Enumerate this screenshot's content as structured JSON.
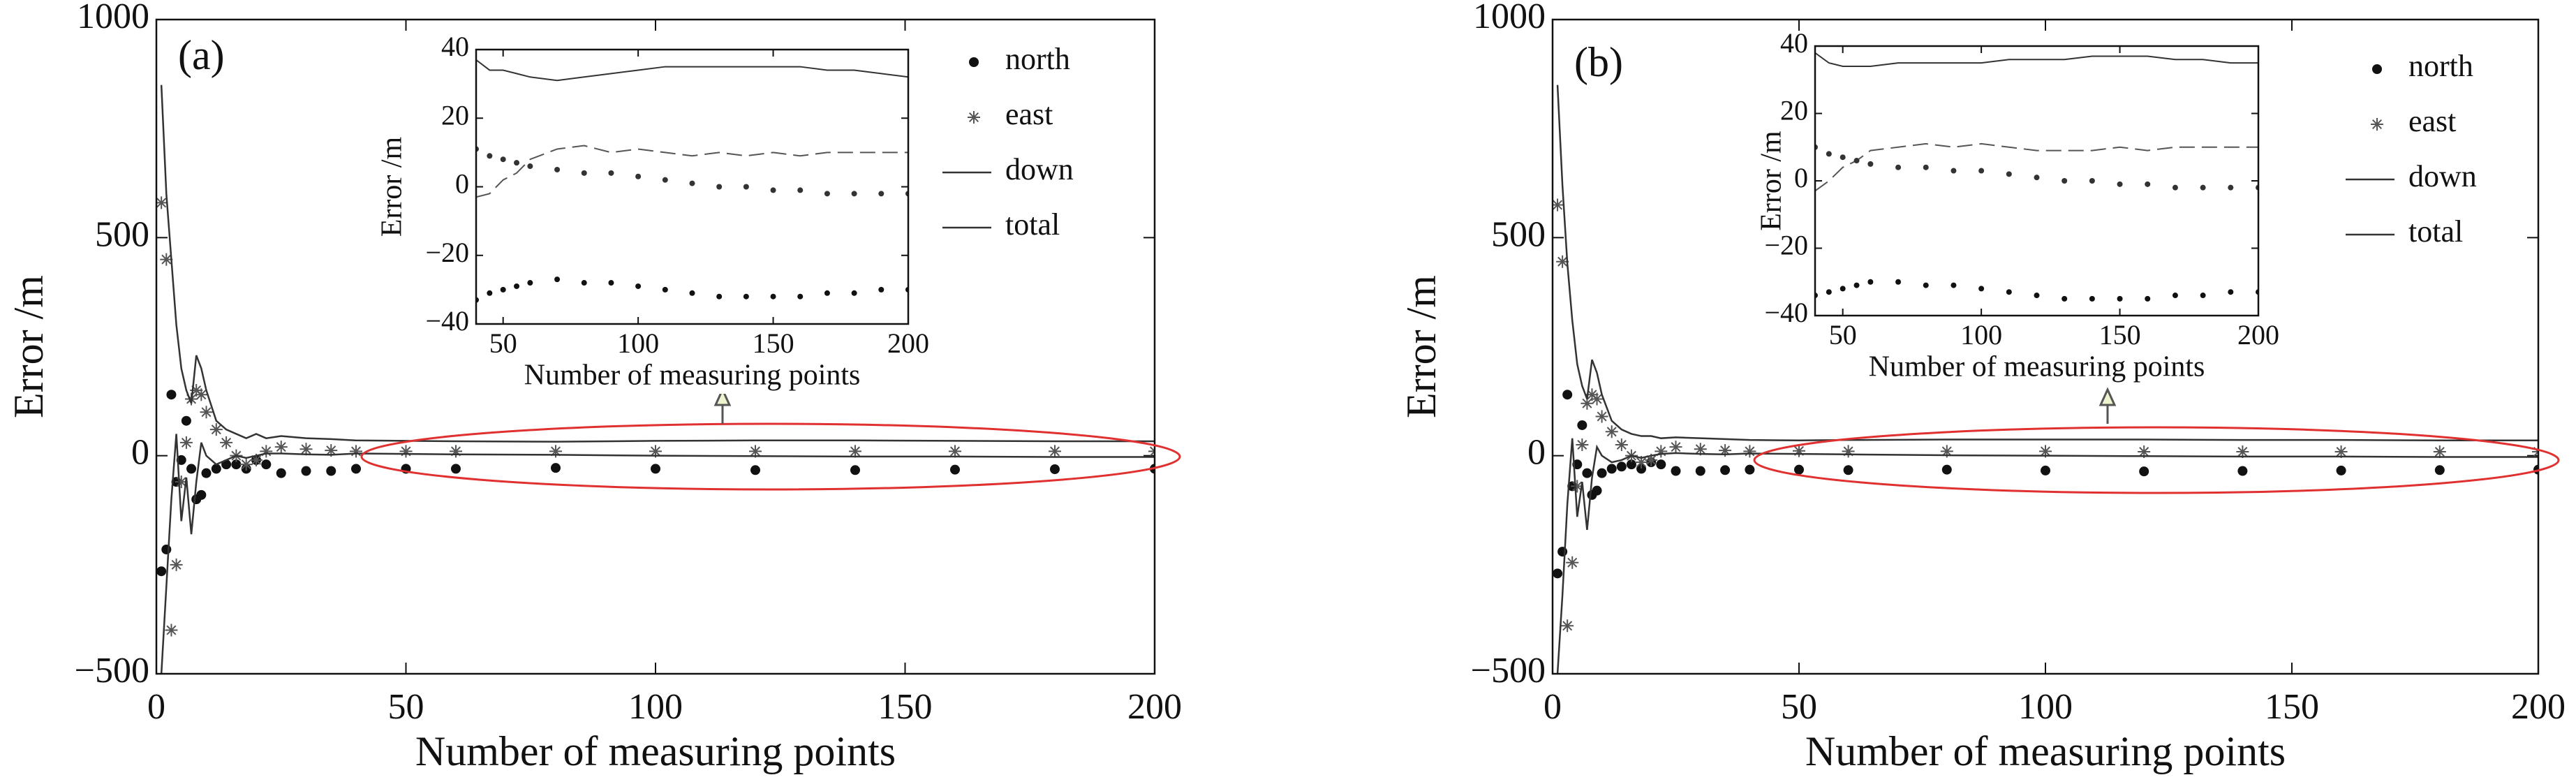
{
  "chart_data": [
    {
      "type": "line",
      "annotation": "(a)",
      "xlabel": "Number of measuring points",
      "ylabel": "Error /m",
      "x": [
        1,
        2,
        3,
        4,
        5,
        6,
        7,
        8,
        9,
        10,
        12,
        14,
        16,
        18,
        20,
        22,
        25,
        30,
        35,
        40,
        50,
        60,
        80,
        100,
        120,
        140,
        160,
        180,
        200
      ],
      "xlim": [
        0,
        200
      ],
      "xticks": [
        0,
        50,
        100,
        150,
        200
      ],
      "ylim": [
        -500,
        1000
      ],
      "yticks": [
        {
          "value": -500,
          "label": "−500"
        },
        0,
        500,
        1000
      ],
      "series": [
        {
          "name": "north",
          "color": "#111111",
          "marker": "dot",
          "values": [
            -265,
            -215,
            140,
            -60,
            -10,
            80,
            -30,
            -100,
            -90,
            -40,
            -30,
            -20,
            -20,
            -30,
            -10,
            -20,
            -40,
            -35,
            -35,
            -30,
            -30,
            -30,
            -28,
            -30,
            -33,
            -33,
            -32,
            -31,
            -30
          ]
        },
        {
          "name": "east",
          "color": "#555555",
          "marker": "star",
          "values": [
            580,
            450,
            -400,
            -250,
            -60,
            30,
            130,
            150,
            140,
            100,
            60,
            30,
            0,
            -20,
            -10,
            10,
            20,
            15,
            12,
            10,
            10,
            10,
            10,
            10,
            10,
            10,
            10,
            10,
            10
          ]
        },
        {
          "name": "down",
          "color": "#333333",
          "marker": "line",
          "values": [
            -500,
            -300,
            -100,
            50,
            -150,
            -50,
            -180,
            -60,
            30,
            0,
            -20,
            -10,
            0,
            -5,
            0,
            5,
            5,
            3,
            2,
            5,
            4,
            3,
            2,
            0,
            -1,
            -2,
            -2,
            -3,
            -3
          ]
        },
        {
          "name": "total",
          "color": "#333333",
          "marker": "line",
          "values": [
            850,
            600,
            450,
            300,
            200,
            150,
            120,
            230,
            200,
            150,
            80,
            60,
            50,
            40,
            50,
            40,
            45,
            40,
            38,
            35,
            34,
            33,
            32,
            34,
            35,
            35,
            34,
            33,
            33
          ]
        }
      ]
    },
    {
      "type": "line",
      "xlabel": "Number of measuring points",
      "ylabel": "Error /m",
      "x": [
        40,
        45,
        50,
        55,
        60,
        70,
        80,
        90,
        100,
        110,
        120,
        130,
        140,
        150,
        160,
        170,
        180,
        190,
        200
      ],
      "xlim": [
        40,
        200
      ],
      "xticks": [
        50,
        100,
        150,
        200
      ],
      "ylim": [
        -40,
        40
      ],
      "yticks": [
        {
          "value": -40,
          "label": "−40"
        },
        {
          "value": -20,
          "label": "−20"
        },
        0,
        20,
        40
      ],
      "series": [
        {
          "color": "#111111",
          "marker": "dot",
          "values": [
            -33,
            -31,
            -30,
            -29,
            -28,
            -27,
            -28,
            -28,
            -29,
            -30,
            -31,
            -32,
            -32,
            -32,
            -32,
            -31,
            -31,
            -30,
            -30
          ]
        },
        {
          "color": "#555555",
          "marker": "dash",
          "values": [
            -3,
            -2,
            2,
            4,
            8,
            11,
            12,
            10,
            11,
            10,
            9,
            10,
            9,
            10,
            9,
            10,
            10,
            10,
            10
          ]
        },
        {
          "color": "#333333",
          "marker": "dot",
          "values": [
            11,
            9,
            8,
            7,
            6,
            5,
            4,
            4,
            3,
            2,
            1,
            0,
            0,
            -1,
            -1,
            -2,
            -2,
            -2,
            -2
          ]
        },
        {
          "color": "#333333",
          "marker": "line",
          "values": [
            37,
            34,
            34,
            33,
            32,
            31,
            32,
            33,
            34,
            35,
            35,
            35,
            35,
            35,
            35,
            34,
            34,
            33,
            32
          ]
        }
      ]
    },
    {
      "type": "line",
      "annotation": "(b)",
      "xlabel": "Number of measuring points",
      "ylabel": "Error /m",
      "x": [
        1,
        2,
        3,
        4,
        5,
        6,
        7,
        8,
        9,
        10,
        12,
        14,
        16,
        18,
        20,
        22,
        25,
        30,
        35,
        40,
        50,
        60,
        80,
        100,
        120,
        140,
        160,
        180,
        200
      ],
      "xlim": [
        0,
        200
      ],
      "xticks": [
        0,
        50,
        100,
        150,
        200
      ],
      "ylim": [
        -500,
        1000
      ],
      "yticks": [
        {
          "value": -500,
          "label": "−500"
        },
        0,
        500,
        1000
      ],
      "series": [
        {
          "name": "north",
          "color": "#111111",
          "marker": "dot",
          "values": [
            -270,
            -220,
            140,
            -70,
            -20,
            70,
            -40,
            -90,
            -80,
            -40,
            -30,
            -25,
            -20,
            -30,
            -15,
            -20,
            -35,
            -35,
            -33,
            -32,
            -32,
            -33,
            -32,
            -34,
            -36,
            -35,
            -34,
            -33,
            -32
          ]
        },
        {
          "name": "east",
          "color": "#555555",
          "marker": "star",
          "values": [
            575,
            445,
            -390,
            -245,
            -70,
            25,
            120,
            140,
            130,
            90,
            55,
            25,
            0,
            -15,
            -10,
            10,
            20,
            15,
            12,
            10,
            11,
            10,
            10,
            10,
            9,
            9,
            9,
            9,
            9
          ]
        },
        {
          "name": "down",
          "color": "#333333",
          "marker": "line",
          "values": [
            -500,
            -320,
            -110,
            40,
            -140,
            -60,
            -170,
            -50,
            20,
            0,
            -15,
            -10,
            0,
            -5,
            0,
            4,
            6,
            4,
            3,
            5,
            4,
            3,
            1,
            0,
            -1,
            -2,
            -2,
            -3,
            -3
          ]
        },
        {
          "name": "total",
          "color": "#333333",
          "marker": "line",
          "values": [
            850,
            620,
            440,
            310,
            210,
            160,
            130,
            220,
            190,
            140,
            80,
            60,
            50,
            45,
            45,
            40,
            42,
            40,
            38,
            36,
            35,
            36,
            37,
            37,
            37,
            36,
            36,
            35,
            35
          ]
        }
      ]
    },
    {
      "type": "line",
      "xlabel": "Number of measuring points",
      "ylabel": "Error /m",
      "x": [
        40,
        45,
        50,
        55,
        60,
        70,
        80,
        90,
        100,
        110,
        120,
        130,
        140,
        150,
        160,
        170,
        180,
        190,
        200
      ],
      "xlim": [
        40,
        200
      ],
      "xticks": [
        50,
        100,
        150,
        200
      ],
      "ylim": [
        -40,
        40
      ],
      "yticks": [
        {
          "value": -40,
          "label": "−40"
        },
        {
          "value": -20,
          "label": "−20"
        },
        0,
        20,
        40
      ],
      "series": [
        {
          "color": "#111111",
          "marker": "dot",
          "values": [
            -34,
            -33,
            -32,
            -31,
            -30,
            -30,
            -31,
            -31,
            -32,
            -33,
            -34,
            -35,
            -35,
            -35,
            -35,
            -34,
            -34,
            -33,
            -33
          ]
        },
        {
          "color": "#555555",
          "marker": "dash",
          "values": [
            -3,
            0,
            4,
            6,
            9,
            10,
            11,
            10,
            11,
            10,
            9,
            9,
            9,
            10,
            9,
            10,
            10,
            10,
            10
          ]
        },
        {
          "color": "#333333",
          "marker": "dot",
          "values": [
            10,
            8,
            7,
            6,
            5,
            4,
            4,
            3,
            3,
            2,
            1,
            0,
            0,
            -1,
            -1,
            -2,
            -2,
            -2,
            -2
          ]
        },
        {
          "color": "#333333",
          "marker": "line",
          "values": [
            38,
            35,
            34,
            34,
            34,
            35,
            35,
            35,
            35,
            36,
            36,
            36,
            37,
            37,
            37,
            36,
            36,
            35,
            35
          ]
        }
      ]
    }
  ]
}
